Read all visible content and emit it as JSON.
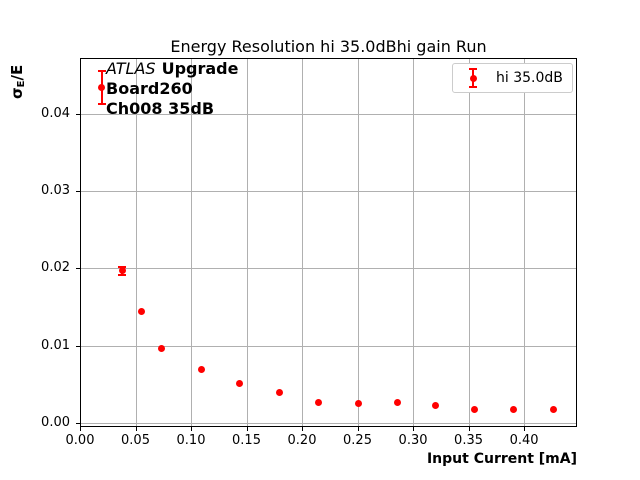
{
  "chart_data": {
    "type": "scatter",
    "title": "Energy Resolution hi 35.0dBhi gain Run",
    "xlabel": "Input Current [mA]",
    "ylabel": "σE/E",
    "xlim": [
      0,
      0.4477
    ],
    "ylim": [
      -0.0005,
      0.0472
    ],
    "grid": true,
    "xticks": {
      "values": [
        0.0,
        0.05,
        0.1,
        0.15,
        0.2,
        0.25,
        0.3,
        0.35,
        0.4
      ],
      "labels": [
        "0.00",
        "0.05",
        "0.10",
        "0.15",
        "0.20",
        "0.25",
        "0.30",
        "0.35",
        "0.40"
      ]
    },
    "yticks": {
      "values": [
        0.0,
        0.01,
        0.02,
        0.03,
        0.04
      ],
      "labels": [
        "0.00",
        "0.01",
        "0.02",
        "0.03",
        "0.04"
      ]
    },
    "legend": {
      "label": "hi 35.0dB",
      "position": "upper right"
    },
    "series": [
      {
        "name": "hi 35.0dB",
        "color": "#ff0000",
        "marker": "circle",
        "points": [
          {
            "x": 0.0195,
            "y": 0.0434,
            "yerr": 0.0021
          },
          {
            "x": 0.038,
            "y": 0.0197,
            "yerr": 0.0005
          },
          {
            "x": 0.0556,
            "y": 0.0144,
            "yerr": 0
          },
          {
            "x": 0.073,
            "y": 0.0096,
            "yerr": 0
          },
          {
            "x": 0.109,
            "y": 0.0069,
            "yerr": 0
          },
          {
            "x": 0.1435,
            "y": 0.0051,
            "yerr": 0
          },
          {
            "x": 0.1796,
            "y": 0.0039,
            "yerr": 0
          },
          {
            "x": 0.2145,
            "y": 0.0027,
            "yerr": 0
          },
          {
            "x": 0.2507,
            "y": 0.0025,
            "yerr": 0
          },
          {
            "x": 0.2859,
            "y": 0.0027,
            "yerr": 0
          },
          {
            "x": 0.3204,
            "y": 0.0023,
            "yerr": 0
          },
          {
            "x": 0.3556,
            "y": 0.0017,
            "yerr": 0
          },
          {
            "x": 0.3907,
            "y": 0.0018,
            "yerr": 0
          },
          {
            "x": 0.4268,
            "y": 0.0017,
            "yerr": 0
          }
        ]
      }
    ]
  },
  "ylabel_parts": {
    "sigma": "σ",
    "subscript": "E",
    "rest": "/E"
  },
  "annotation": {
    "line1_italic": "ATLAS",
    "line1_bold": "Upgrade",
    "line2": "Board260",
    "line3": "Ch008 35dB"
  },
  "colors": {
    "series": "#ff0000",
    "grid": "#b0b0b0",
    "spine": "#000000",
    "legend_border": "#cccccc",
    "background": "#ffffff",
    "text": "#000000"
  }
}
